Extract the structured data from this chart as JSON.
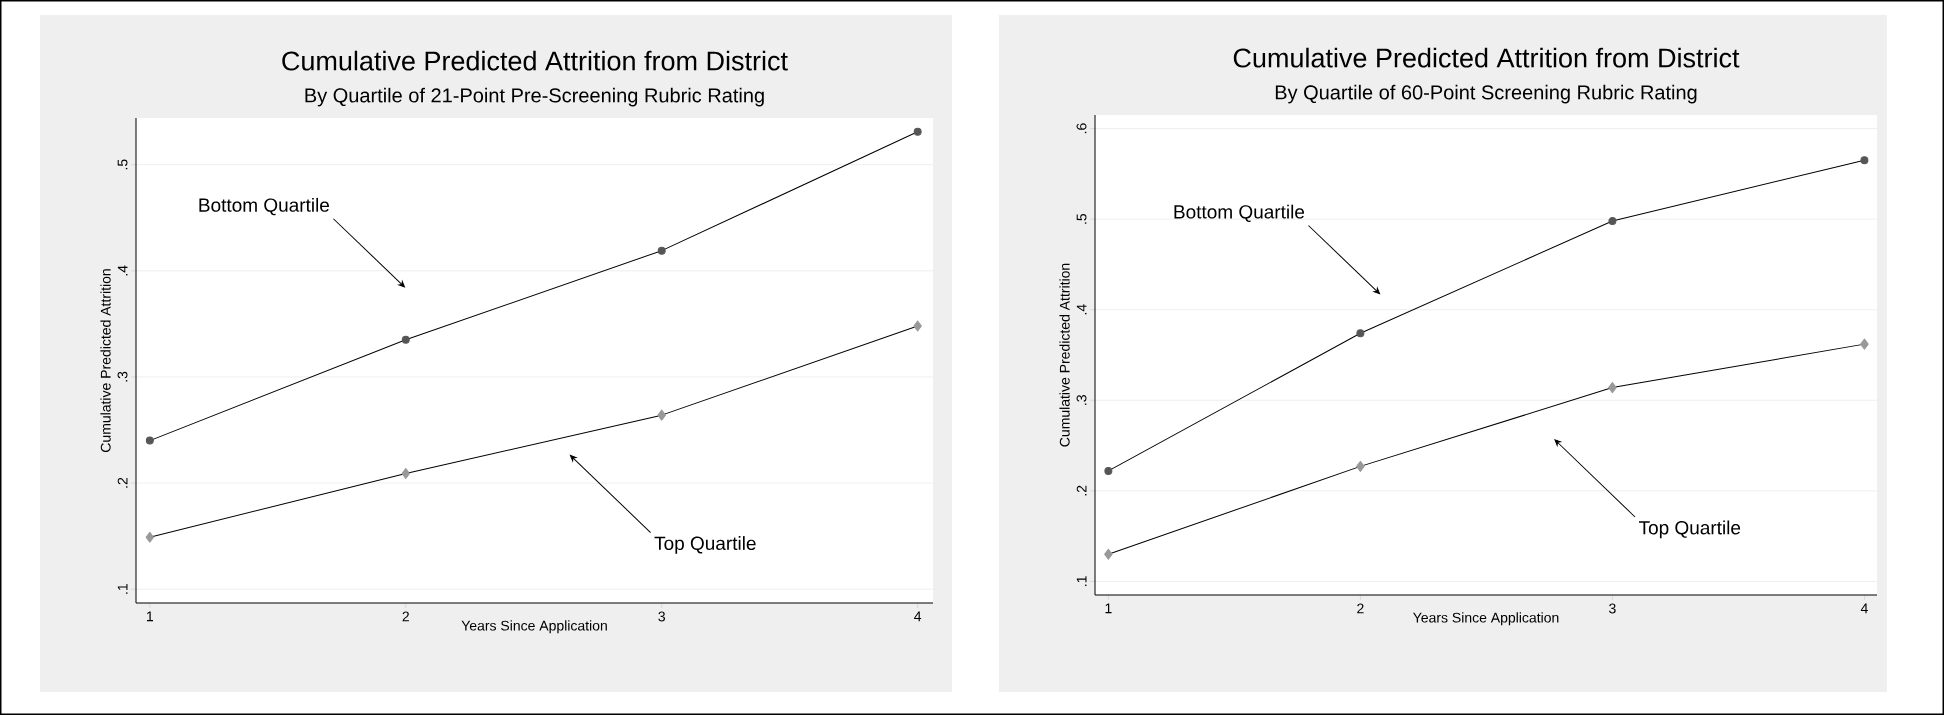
{
  "chart_data": [
    {
      "type": "line",
      "title": "Cumulative Predicted Attrition from District",
      "subtitle": "By Quartile of 21-Point Pre-Screening Rubric Rating",
      "xlabel": "Years Since Application",
      "ylabel": "Cumulative Predicted Attrition",
      "x": [
        1,
        2,
        3,
        4
      ],
      "series": [
        {
          "color": "#555555",
          "marker": "circle",
          "values": [
            0.24,
            0.335,
            0.419,
            0.531
          ]
        },
        {
          "color": "#999999",
          "marker": "diamond",
          "values": [
            0.149,
            0.209,
            0.264,
            0.348
          ]
        }
      ],
      "annotations": [
        "Bottom Quartile",
        "Top Quartile"
      ],
      "xlim": [
        0.946,
        4.06
      ],
      "ylim": [
        0.087,
        0.544
      ],
      "xticks": [
        1,
        2,
        3,
        4
      ],
      "yticks": [
        {
          "value": 0.1,
          "label": ".1"
        },
        {
          "value": 0.2,
          "label": ".2"
        },
        {
          "value": 0.3,
          "label": ".3"
        },
        {
          "value": 0.4,
          "label": ".4"
        },
        {
          "value": 0.5,
          "label": ".5"
        }
      ],
      "grid": "y",
      "line_style": "solid"
    },
    {
      "type": "line",
      "title": "Cumulative Predicted Attrition from District",
      "subtitle": "By Quartile of 60-Point Screening Rubric Rating",
      "xlabel": "Years Since Application",
      "ylabel": "Cumulative Predicted Attrition",
      "x": [
        1,
        2,
        3,
        4
      ],
      "series": [
        {
          "color": "#555555",
          "marker": "circle",
          "values": [
            0.222,
            0.374,
            0.498,
            0.565
          ]
        },
        {
          "color": "#999999",
          "marker": "diamond",
          "values": [
            0.13,
            0.227,
            0.314,
            0.362
          ]
        }
      ],
      "annotations": [
        "Bottom Quartile",
        "Top Quartile"
      ],
      "xlim": [
        0.947,
        4.05
      ],
      "ylim": [
        0.085,
        0.615
      ],
      "xticks": [
        1,
        2,
        3,
        4
      ],
      "yticks": [
        {
          "value": 0.1,
          "label": ".1"
        },
        {
          "value": 0.2,
          "label": ".2"
        },
        {
          "value": 0.3,
          "label": ".3"
        },
        {
          "value": 0.4,
          "label": ".4"
        },
        {
          "value": 0.5,
          "label": ".5"
        },
        {
          "value": 0.6,
          "label": ".6"
        }
      ],
      "grid": "y",
      "line_style": "solid"
    }
  ]
}
